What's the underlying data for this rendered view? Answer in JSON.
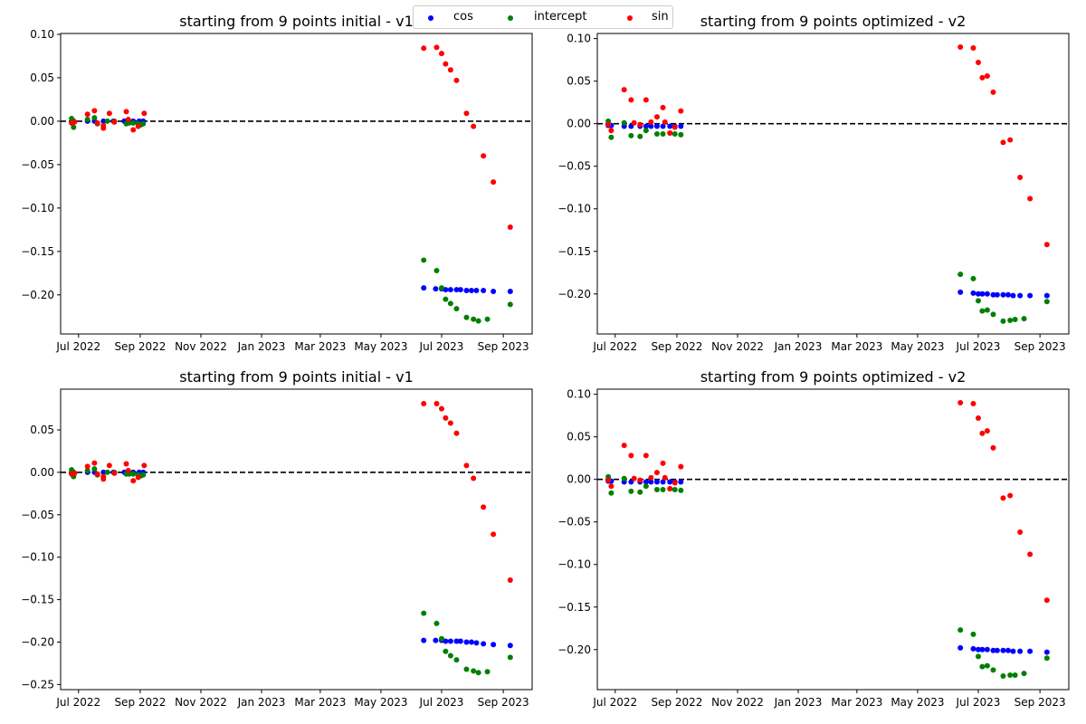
{
  "figure": {
    "legend": {
      "placement": "top-center",
      "entries": [
        {
          "label": "cos",
          "color": "#0000ff"
        },
        {
          "label": "intercept",
          "color": "#008000"
        },
        {
          "label": "sin",
          "color": "#ff0000"
        }
      ]
    }
  },
  "chart_data": [
    {
      "type": "scatter",
      "title": "starting from 9 points initial - v1",
      "xlabel": "",
      "ylabel": "",
      "xlim": [
        "2022-06-13",
        "2023-09-30"
      ],
      "ylim": [
        -0.245,
        0.101
      ],
      "x_ticks": [
        "2022-07-01",
        "2022-09-01",
        "2022-11-01",
        "2023-01-01",
        "2023-03-01",
        "2023-05-01",
        "2023-07-01",
        "2023-09-01"
      ],
      "x_tick_labels": [
        "Jul 2022",
        "Sep 2022",
        "Nov 2022",
        "Jan 2023",
        "Mar 2023",
        "May 2023",
        "Jul 2023",
        "Sep 2023"
      ],
      "y_ticks": [
        0.1,
        0.05,
        0.0,
        -0.05,
        -0.1,
        -0.15,
        -0.2
      ],
      "y_tick_labels": [
        "0.10",
        "0.05",
        "0.00",
        "−0.05",
        "−0.10",
        "−0.15",
        "−0.20"
      ],
      "hline": 0,
      "series": [
        {
          "name": "cos",
          "color": "#0000ff",
          "x": [
            "2022-06-26",
            "2022-07-10",
            "2022-07-17",
            "2022-07-26",
            "2022-08-05",
            "2022-08-16",
            "2022-08-20",
            "2022-08-25",
            "2022-08-31",
            "2022-09-04",
            "2023-06-13",
            "2023-06-25",
            "2023-07-01",
            "2023-07-05",
            "2023-07-10",
            "2023-07-16",
            "2023-07-20",
            "2023-07-26",
            "2023-07-31",
            "2023-08-05",
            "2023-08-12",
            "2023-08-22",
            "2023-09-08"
          ],
          "y": [
            0.0,
            0.0,
            0.0,
            0.0,
            0.0,
            0.0,
            0.0,
            0.0,
            0.0,
            0.0,
            -0.192,
            -0.193,
            -0.193,
            -0.194,
            -0.194,
            -0.194,
            -0.194,
            -0.195,
            -0.195,
            -0.195,
            -0.195,
            -0.196,
            -0.196
          ]
        },
        {
          "name": "intercept",
          "color": "#008000",
          "x": [
            "2022-06-24",
            "2022-06-26",
            "2022-07-10",
            "2022-07-17",
            "2022-07-20",
            "2022-07-30",
            "2022-08-06",
            "2022-08-18",
            "2022-08-21",
            "2022-08-25",
            "2022-08-30",
            "2022-09-02",
            "2022-09-04",
            "2023-06-13",
            "2023-06-26",
            "2023-07-01",
            "2023-07-05",
            "2023-07-10",
            "2023-07-16",
            "2023-07-26",
            "2023-08-02",
            "2023-08-07",
            "2023-08-16",
            "2023-09-08"
          ],
          "y": [
            0.003,
            -0.007,
            0.002,
            0.004,
            -0.003,
            0.0,
            0.0,
            -0.003,
            -0.002,
            -0.002,
            -0.003,
            -0.004,
            -0.003,
            -0.16,
            -0.172,
            -0.192,
            -0.205,
            -0.21,
            -0.216,
            -0.226,
            -0.228,
            -0.23,
            -0.228,
            -0.211
          ]
        },
        {
          "name": "sin",
          "color": "#ff0000",
          "x": [
            "2022-06-24",
            "2022-06-27",
            "2022-07-10",
            "2022-07-17",
            "2022-07-20",
            "2022-07-26",
            "2022-07-26",
            "2022-08-01",
            "2022-08-06",
            "2022-08-18",
            "2022-08-20",
            "2022-08-25",
            "2022-08-30",
            "2022-09-05",
            "2023-06-13",
            "2023-06-26",
            "2023-07-01",
            "2023-07-05",
            "2023-07-10",
            "2023-07-16",
            "2023-07-26",
            "2023-08-02",
            "2023-08-12",
            "2023-08-22",
            "2023-09-08"
          ],
          "y": [
            -0.002,
            -0.001,
            0.008,
            0.012,
            -0.002,
            -0.005,
            -0.008,
            0.009,
            -0.001,
            0.011,
            0.002,
            -0.01,
            -0.006,
            0.009,
            0.084,
            0.085,
            0.078,
            0.066,
            0.059,
            0.047,
            0.009,
            -0.006,
            -0.04,
            -0.07,
            -0.122
          ]
        }
      ]
    },
    {
      "type": "scatter",
      "title": "starting from 9 points optimized - v2",
      "xlabel": "",
      "ylabel": "",
      "xlim": [
        "2022-06-13",
        "2023-09-30"
      ],
      "ylim": [
        -0.247,
        0.106
      ],
      "x_ticks": [
        "2022-07-01",
        "2022-09-01",
        "2022-11-01",
        "2023-01-01",
        "2023-03-01",
        "2023-05-01",
        "2023-07-01",
        "2023-09-01"
      ],
      "x_tick_labels": [
        "Jul 2022",
        "Sep 2022",
        "Nov 2022",
        "Jan 2023",
        "Mar 2023",
        "May 2023",
        "Jul 2023",
        "Sep 2023"
      ],
      "y_ticks": [
        0.1,
        0.05,
        0.0,
        -0.05,
        -0.1,
        -0.15,
        -0.2
      ],
      "y_tick_labels": [
        "0.10",
        "0.05",
        "0.00",
        "−0.05",
        "−0.10",
        "−0.15",
        "−0.20"
      ],
      "hline": 0,
      "series": [
        {
          "name": "cos",
          "color": "#0000ff",
          "x": [
            "2022-06-24",
            "2022-06-27",
            "2022-07-10",
            "2022-07-17",
            "2022-07-26",
            "2022-08-01",
            "2022-08-06",
            "2022-08-12",
            "2022-08-18",
            "2022-08-25",
            "2022-08-30",
            "2022-09-05",
            "2023-06-13",
            "2023-06-26",
            "2023-07-01",
            "2023-07-05",
            "2023-07-10",
            "2023-07-16",
            "2023-07-20",
            "2023-07-26",
            "2023-07-31",
            "2023-08-05",
            "2023-08-12",
            "2023-08-22",
            "2023-09-08"
          ],
          "y": [
            -0.002,
            -0.002,
            -0.003,
            -0.003,
            -0.003,
            -0.003,
            -0.003,
            -0.003,
            -0.003,
            -0.003,
            -0.003,
            -0.003,
            -0.198,
            -0.199,
            -0.2,
            -0.2,
            -0.2,
            -0.201,
            -0.201,
            -0.201,
            -0.201,
            -0.202,
            -0.202,
            -0.202,
            -0.202
          ]
        },
        {
          "name": "intercept",
          "color": "#008000",
          "x": [
            "2022-06-24",
            "2022-06-27",
            "2022-07-10",
            "2022-07-17",
            "2022-07-26",
            "2022-08-01",
            "2022-08-12",
            "2022-08-18",
            "2022-08-25",
            "2022-08-30",
            "2022-09-05",
            "2023-06-13",
            "2023-06-26",
            "2023-07-01",
            "2023-07-05",
            "2023-07-10",
            "2023-07-16",
            "2023-07-26",
            "2023-08-02",
            "2023-08-07",
            "2023-08-16",
            "2023-09-08"
          ],
          "y": [
            0.003,
            -0.016,
            0.001,
            -0.014,
            -0.015,
            -0.008,
            -0.012,
            -0.012,
            -0.011,
            -0.012,
            -0.013,
            -0.177,
            -0.182,
            -0.208,
            -0.22,
            -0.219,
            -0.224,
            -0.232,
            -0.231,
            -0.23,
            -0.229,
            -0.209
          ]
        },
        {
          "name": "sin",
          "color": "#ff0000",
          "x": [
            "2022-06-24",
            "2022-06-27",
            "2022-07-10",
            "2022-07-17",
            "2022-07-20",
            "2022-07-26",
            "2022-08-01",
            "2022-08-06",
            "2022-08-12",
            "2022-08-18",
            "2022-08-20",
            "2022-08-25",
            "2022-08-30",
            "2022-09-05",
            "2023-06-13",
            "2023-06-26",
            "2023-07-01",
            "2023-07-05",
            "2023-07-10",
            "2023-07-16",
            "2023-07-26",
            "2023-08-02",
            "2023-08-12",
            "2023-08-22",
            "2023-09-08"
          ],
          "y": [
            -0.001,
            -0.008,
            0.04,
            0.028,
            0.001,
            -0.001,
            0.028,
            0.002,
            0.008,
            0.019,
            0.002,
            -0.011,
            -0.004,
            0.015,
            0.09,
            0.089,
            0.072,
            0.054,
            0.056,
            0.037,
            -0.022,
            -0.019,
            -0.063,
            -0.088,
            -0.142
          ]
        }
      ]
    },
    {
      "type": "scatter",
      "title": "starting from 9 points initial - v1",
      "xlabel": "",
      "ylabel": "",
      "xlim": [
        "2022-06-13",
        "2023-09-30"
      ],
      "ylim": [
        -0.256,
        0.098
      ],
      "x_ticks": [
        "2022-07-01",
        "2022-09-01",
        "2022-11-01",
        "2023-01-01",
        "2023-03-01",
        "2023-05-01",
        "2023-07-01",
        "2023-09-01"
      ],
      "x_tick_labels": [
        "Jul 2022",
        "Sep 2022",
        "Nov 2022",
        "Jan 2023",
        "Mar 2023",
        "May 2023",
        "Jul 2023",
        "Sep 2023"
      ],
      "y_ticks": [
        0.05,
        0.0,
        -0.05,
        -0.1,
        -0.15,
        -0.2,
        -0.25
      ],
      "y_tick_labels": [
        "0.05",
        "0.00",
        "−0.05",
        "−0.10",
        "−0.15",
        "−0.20",
        "−0.25"
      ],
      "hline": 0,
      "series": [
        {
          "name": "cos",
          "color": "#0000ff",
          "x": [
            "2022-06-26",
            "2022-07-10",
            "2022-07-17",
            "2022-07-26",
            "2022-08-05",
            "2022-08-16",
            "2022-08-20",
            "2022-08-25",
            "2022-08-31",
            "2022-09-04",
            "2023-06-13",
            "2023-06-25",
            "2023-07-01",
            "2023-07-05",
            "2023-07-10",
            "2023-07-16",
            "2023-07-20",
            "2023-07-26",
            "2023-07-31",
            "2023-08-05",
            "2023-08-12",
            "2023-08-22",
            "2023-09-08"
          ],
          "y": [
            0.0,
            0.0,
            0.0,
            0.0,
            0.0,
            0.0,
            0.0,
            0.0,
            0.0,
            0.0,
            -0.198,
            -0.198,
            -0.198,
            -0.199,
            -0.199,
            -0.199,
            -0.199,
            -0.2,
            -0.2,
            -0.201,
            -0.202,
            -0.203,
            -0.204
          ]
        },
        {
          "name": "intercept",
          "color": "#008000",
          "x": [
            "2022-06-24",
            "2022-06-26",
            "2022-07-10",
            "2022-07-17",
            "2022-07-20",
            "2022-07-30",
            "2022-08-06",
            "2022-08-18",
            "2022-08-21",
            "2022-08-25",
            "2022-08-30",
            "2022-09-02",
            "2022-09-04",
            "2023-06-13",
            "2023-06-26",
            "2023-07-01",
            "2023-07-05",
            "2023-07-10",
            "2023-07-16",
            "2023-07-26",
            "2023-08-02",
            "2023-08-07",
            "2023-08-16",
            "2023-09-08"
          ],
          "y": [
            0.003,
            -0.005,
            0.002,
            0.004,
            -0.003,
            0.0,
            0.0,
            -0.002,
            -0.002,
            -0.002,
            -0.003,
            -0.004,
            -0.003,
            -0.166,
            -0.178,
            -0.196,
            -0.211,
            -0.216,
            -0.221,
            -0.232,
            -0.234,
            -0.236,
            -0.235,
            -0.218
          ]
        },
        {
          "name": "sin",
          "color": "#ff0000",
          "x": [
            "2022-06-24",
            "2022-06-27",
            "2022-07-10",
            "2022-07-17",
            "2022-07-20",
            "2022-07-26",
            "2022-07-26",
            "2022-08-01",
            "2022-08-06",
            "2022-08-18",
            "2022-08-20",
            "2022-08-25",
            "2022-08-30",
            "2022-09-05",
            "2023-06-13",
            "2023-06-26",
            "2023-07-01",
            "2023-07-05",
            "2023-07-10",
            "2023-07-16",
            "2023-07-26",
            "2023-08-02",
            "2023-08-12",
            "2023-08-22",
            "2023-09-08"
          ],
          "y": [
            -0.002,
            -0.001,
            0.007,
            0.011,
            -0.002,
            -0.005,
            -0.008,
            0.008,
            -0.001,
            0.01,
            0.002,
            -0.01,
            -0.006,
            0.008,
            0.081,
            0.081,
            0.075,
            0.064,
            0.058,
            0.046,
            0.008,
            -0.007,
            -0.041,
            -0.073,
            -0.127
          ]
        }
      ]
    },
    {
      "type": "scatter",
      "title": "starting from 9 points optimized - v2",
      "xlabel": "",
      "ylabel": "",
      "xlim": [
        "2022-06-13",
        "2023-09-30"
      ],
      "ylim": [
        -0.247,
        0.106
      ],
      "x_ticks": [
        "2022-07-01",
        "2022-09-01",
        "2022-11-01",
        "2023-01-01",
        "2023-03-01",
        "2023-05-01",
        "2023-07-01",
        "2023-09-01"
      ],
      "x_tick_labels": [
        "Jul 2022",
        "Sep 2022",
        "Nov 2022",
        "Jan 2023",
        "Mar 2023",
        "May 2023",
        "Jul 2023",
        "Sep 2023"
      ],
      "y_ticks": [
        0.1,
        0.05,
        0.0,
        -0.05,
        -0.1,
        -0.15,
        -0.2
      ],
      "y_tick_labels": [
        "0.10",
        "0.05",
        "0.00",
        "−0.05",
        "−0.10",
        "−0.15",
        "−0.20"
      ],
      "hline": 0,
      "series": [
        {
          "name": "cos",
          "color": "#0000ff",
          "x": [
            "2022-06-24",
            "2022-06-27",
            "2022-07-10",
            "2022-07-17",
            "2022-07-26",
            "2022-08-01",
            "2022-08-06",
            "2022-08-12",
            "2022-08-18",
            "2022-08-25",
            "2022-08-30",
            "2022-09-05",
            "2023-06-13",
            "2023-06-26",
            "2023-07-01",
            "2023-07-05",
            "2023-07-10",
            "2023-07-16",
            "2023-07-20",
            "2023-07-26",
            "2023-07-31",
            "2023-08-05",
            "2023-08-12",
            "2023-08-22",
            "2023-09-08"
          ],
          "y": [
            -0.002,
            -0.002,
            -0.003,
            -0.003,
            -0.003,
            -0.003,
            -0.003,
            -0.003,
            -0.003,
            -0.003,
            -0.003,
            -0.003,
            -0.198,
            -0.199,
            -0.2,
            -0.2,
            -0.2,
            -0.201,
            -0.201,
            -0.201,
            -0.201,
            -0.202,
            -0.202,
            -0.202,
            -0.203
          ]
        },
        {
          "name": "intercept",
          "color": "#008000",
          "x": [
            "2022-06-24",
            "2022-06-27",
            "2022-07-10",
            "2022-07-17",
            "2022-07-26",
            "2022-08-01",
            "2022-08-12",
            "2022-08-18",
            "2022-08-25",
            "2022-08-30",
            "2022-09-05",
            "2023-06-13",
            "2023-06-26",
            "2023-07-01",
            "2023-07-05",
            "2023-07-10",
            "2023-07-16",
            "2023-07-26",
            "2023-08-02",
            "2023-08-07",
            "2023-08-16",
            "2023-09-08"
          ],
          "y": [
            0.003,
            -0.016,
            0.001,
            -0.014,
            -0.015,
            -0.008,
            -0.012,
            -0.012,
            -0.011,
            -0.012,
            -0.013,
            -0.177,
            -0.182,
            -0.208,
            -0.22,
            -0.219,
            -0.224,
            -0.231,
            -0.23,
            -0.23,
            -0.228,
            -0.21
          ]
        },
        {
          "name": "sin",
          "color": "#ff0000",
          "x": [
            "2022-06-24",
            "2022-06-27",
            "2022-07-10",
            "2022-07-17",
            "2022-07-20",
            "2022-07-26",
            "2022-08-01",
            "2022-08-06",
            "2022-08-12",
            "2022-08-18",
            "2022-08-20",
            "2022-08-25",
            "2022-08-30",
            "2022-09-05",
            "2023-06-13",
            "2023-06-26",
            "2023-07-01",
            "2023-07-05",
            "2023-07-10",
            "2023-07-16",
            "2023-07-26",
            "2023-08-02",
            "2023-08-12",
            "2023-08-22",
            "2023-09-08"
          ],
          "y": [
            -0.001,
            -0.008,
            0.04,
            0.028,
            0.001,
            -0.001,
            0.028,
            0.002,
            0.008,
            0.019,
            0.002,
            -0.011,
            -0.004,
            0.015,
            0.09,
            0.089,
            0.072,
            0.054,
            0.057,
            0.037,
            -0.022,
            -0.019,
            -0.062,
            -0.088,
            -0.142
          ]
        }
      ]
    }
  ]
}
